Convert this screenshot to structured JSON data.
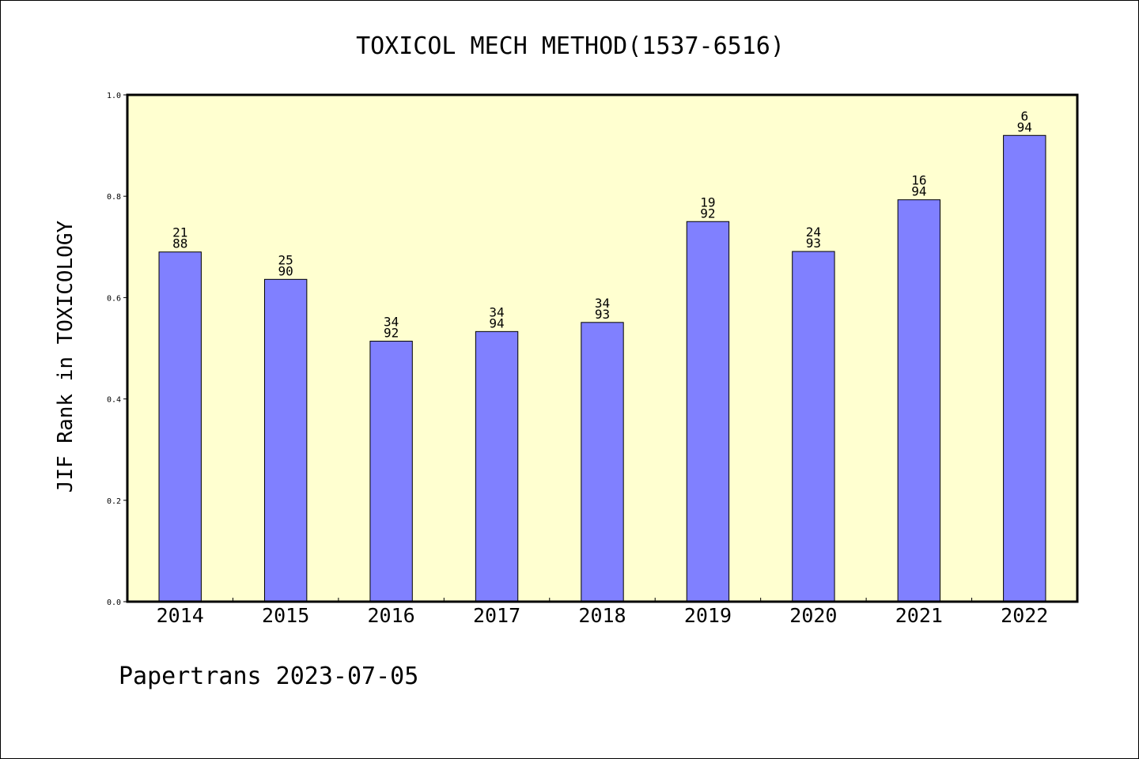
{
  "chart_data": {
    "type": "bar",
    "title": "TOXICOL MECH METHOD(1537-6516)",
    "xlabel": "",
    "ylabel": "JIF Rank in TOXICOLOGY",
    "categories": [
      "2014",
      "2015",
      "2016",
      "2017",
      "2018",
      "2019",
      "2020",
      "2021",
      "2022"
    ],
    "values": [
      0.69,
      0.636,
      0.514,
      0.533,
      0.551,
      0.75,
      0.691,
      0.793,
      0.92
    ],
    "rank_labels": [
      {
        "rank": "21",
        "total": "88"
      },
      {
        "rank": "25",
        "total": "90"
      },
      {
        "rank": "34",
        "total": "92"
      },
      {
        "rank": "34",
        "total": "94"
      },
      {
        "rank": "34",
        "total": "93"
      },
      {
        "rank": "19",
        "total": "92"
      },
      {
        "rank": "24",
        "total": "93"
      },
      {
        "rank": "16",
        "total": "94"
      },
      {
        "rank": "6",
        "total": "94"
      }
    ],
    "ylim": [
      0.0,
      1.0
    ],
    "yticks": [
      "0.0",
      "0.2",
      "0.4",
      "0.6",
      "0.8",
      "1.0"
    ],
    "grid": false,
    "colors": {
      "bar": "#8080ff",
      "plot_background": "#ffffd0",
      "axes": "#000000"
    }
  },
  "footer": {
    "text": "Papertrans 2023-07-05"
  }
}
